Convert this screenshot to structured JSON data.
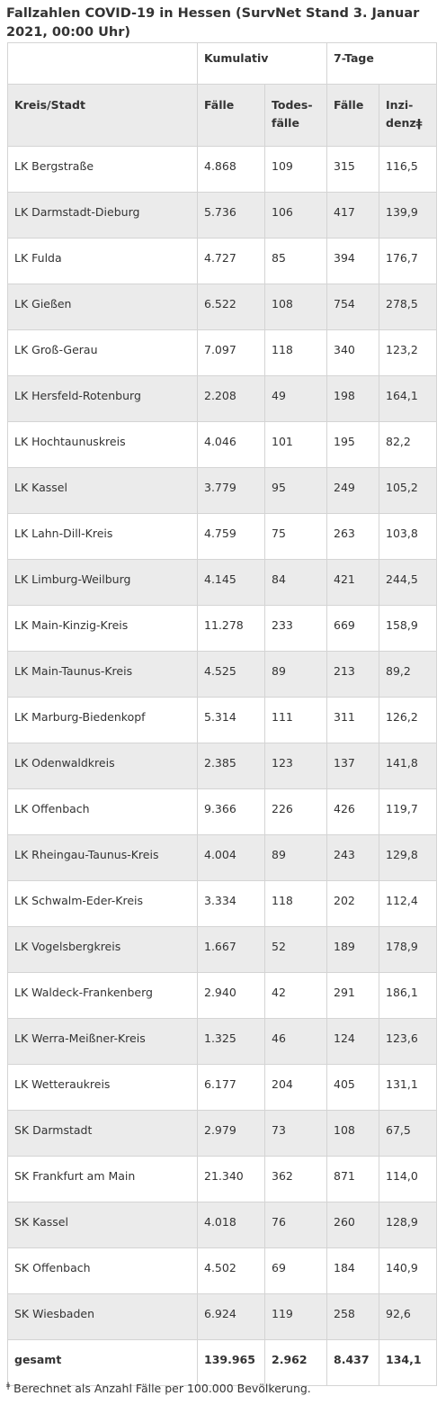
{
  "title": "Fallzahlen COVID-19 in Hessen (SurvNet Stand 3. Januar 2021, 00:00 Uhr)",
  "header_groups": [
    "",
    "Kumulativ",
    "7-Tage"
  ],
  "columns": [
    "Kreis/Stadt",
    "Fälle",
    "Todes-fälle",
    "Fälle",
    "Inzi-denzǂ"
  ],
  "rows": [
    [
      "LK Bergstraße",
      "4.868",
      "109",
      "315",
      "116,5"
    ],
    [
      "LK Darmstadt-Dieburg",
      "5.736",
      "106",
      "417",
      "139,9"
    ],
    [
      "LK Fulda",
      "4.727",
      "85",
      "394",
      "176,7"
    ],
    [
      "LK Gießen",
      "6.522",
      "108",
      "754",
      "278,5"
    ],
    [
      "LK Groß-Gerau",
      "7.097",
      "118",
      "340",
      "123,2"
    ],
    [
      "LK Hersfeld-Rotenburg",
      "2.208",
      "49",
      "198",
      "164,1"
    ],
    [
      "LK Hochtaunuskreis",
      "4.046",
      "101",
      "195",
      "82,2"
    ],
    [
      "LK Kassel",
      "3.779",
      "95",
      "249",
      "105,2"
    ],
    [
      "LK Lahn-Dill-Kreis",
      "4.759",
      "75",
      "263",
      "103,8"
    ],
    [
      "LK Limburg-Weilburg",
      "4.145",
      "84",
      "421",
      "244,5"
    ],
    [
      "LK Main-Kinzig-Kreis",
      "11.278",
      "233",
      "669",
      "158,9"
    ],
    [
      "LK Main-Taunus-Kreis",
      "4.525",
      "89",
      "213",
      "89,2"
    ],
    [
      "LK Marburg-Biedenkopf",
      "5.314",
      "111",
      "311",
      "126,2"
    ],
    [
      "LK Odenwaldkreis",
      "2.385",
      "123",
      "137",
      "141,8"
    ],
    [
      "LK Offenbach",
      "9.366",
      "226",
      "426",
      "119,7"
    ],
    [
      "LK Rheingau-Taunus-Kreis",
      "4.004",
      "89",
      "243",
      "129,8"
    ],
    [
      "LK Schwalm-Eder-Kreis",
      "3.334",
      "118",
      "202",
      "112,4"
    ],
    [
      "LK Vogelsbergkreis",
      "1.667",
      "52",
      "189",
      "178,9"
    ],
    [
      "LK Waldeck-Frankenberg",
      "2.940",
      "42",
      "291",
      "186,1"
    ],
    [
      "LK Werra-Meißner-Kreis",
      "1.325",
      "46",
      "124",
      "123,6"
    ],
    [
      "LK Wetteraukreis",
      "6.177",
      "204",
      "405",
      "131,1"
    ],
    [
      "SK Darmstadt",
      "2.979",
      "73",
      "108",
      "67,5"
    ],
    [
      "SK Frankfurt am Main",
      "21.340",
      "362",
      "871",
      "114,0"
    ],
    [
      "SK Kassel",
      "4.018",
      "76",
      "260",
      "128,9"
    ],
    [
      "SK Offenbach",
      "4.502",
      "69",
      "184",
      "140,9"
    ],
    [
      "SK Wiesbaden",
      "6.924",
      "119",
      "258",
      "92,6"
    ]
  ],
  "total": [
    "gesamt",
    "139.965",
    "2.962",
    "8.437",
    "134,1"
  ],
  "footnote_mark": "ǂ",
  "footnote_text": "Berechnet als Anzahl Fälle per 100.000 Bevölkerung."
}
